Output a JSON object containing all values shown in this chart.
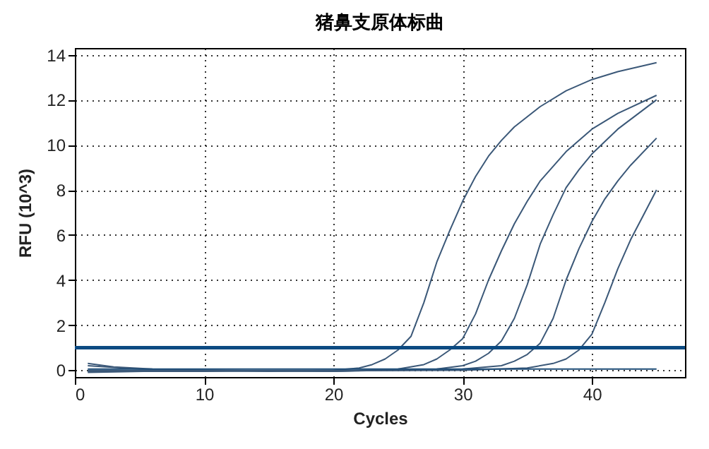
{
  "chart_data": {
    "type": "line",
    "title": "猪鼻支原体标曲",
    "xlabel": "Cycles",
    "ylabel": "RFU (10^3)",
    "xlim": [
      0,
      47.2
    ],
    "xticks": [
      0,
      10,
      20,
      30,
      40
    ],
    "ylim": [
      -0.3,
      14.3
    ],
    "yticks": [
      0,
      2,
      4,
      6,
      8,
      10,
      12,
      14
    ],
    "grid": true,
    "legend": false,
    "marker": "none",
    "line_style": "solid",
    "ref_lines": [
      {
        "axis": "y",
        "value": 1.0,
        "color": "#0b4a82"
      }
    ],
    "series": [
      {
        "color": "#3b5878",
        "x": [
          1,
          3,
          6,
          10,
          15,
          20,
          22,
          23,
          24,
          25,
          26,
          27,
          28,
          29,
          30,
          31,
          32,
          33,
          34,
          36,
          38,
          40,
          42,
          45
        ],
        "values": [
          0.3,
          0.15,
          0.05,
          0,
          -0.05,
          0,
          0.1,
          0.25,
          0.5,
          0.9,
          1.5,
          3.0,
          4.8,
          6.2,
          7.5,
          8.6,
          9.5,
          10.2,
          10.8,
          11.7,
          12.4,
          12.9,
          13.25,
          13.65
        ]
      },
      {
        "color": "#3b5878",
        "x": [
          1,
          5,
          10,
          20,
          25,
          27,
          28,
          29,
          30,
          31,
          32,
          33,
          34,
          35,
          36,
          38,
          40,
          42,
          45
        ],
        "values": [
          0.2,
          0.05,
          0,
          -0.05,
          0.05,
          0.25,
          0.5,
          0.9,
          1.4,
          2.5,
          4.0,
          5.3,
          6.5,
          7.5,
          8.4,
          9.7,
          10.7,
          11.4,
          12.2
        ]
      },
      {
        "color": "#3b5878",
        "x": [
          1,
          10,
          20,
          28,
          30,
          31,
          32,
          33,
          34,
          35,
          36,
          37,
          38,
          39,
          40,
          42,
          45
        ],
        "values": [
          -0.1,
          0,
          -0.05,
          0.05,
          0.2,
          0.4,
          0.75,
          1.3,
          2.3,
          3.8,
          5.6,
          6.9,
          8.1,
          8.9,
          9.6,
          10.7,
          12.0
        ]
      },
      {
        "color": "#3b5878",
        "x": [
          1,
          10,
          25,
          30,
          33,
          34,
          35,
          36,
          37,
          38,
          39,
          40,
          41,
          42,
          43,
          45
        ],
        "values": [
          0,
          -0.02,
          0,
          0.05,
          0.2,
          0.4,
          0.7,
          1.2,
          2.3,
          4.0,
          5.4,
          6.6,
          7.6,
          8.4,
          9.1,
          10.3
        ]
      },
      {
        "color": "#3b5878",
        "x": [
          1,
          10,
          30,
          35,
          37,
          38,
          39,
          40,
          41,
          42,
          43,
          44,
          45
        ],
        "values": [
          -0.05,
          -0.05,
          0,
          0.1,
          0.3,
          0.5,
          0.9,
          1.6,
          3.0,
          4.5,
          5.8,
          6.9,
          8.0
        ]
      },
      {
        "color": "#1f4e79",
        "x": [
          1,
          45
        ],
        "values": [
          0.05,
          0.05
        ]
      }
    ]
  }
}
